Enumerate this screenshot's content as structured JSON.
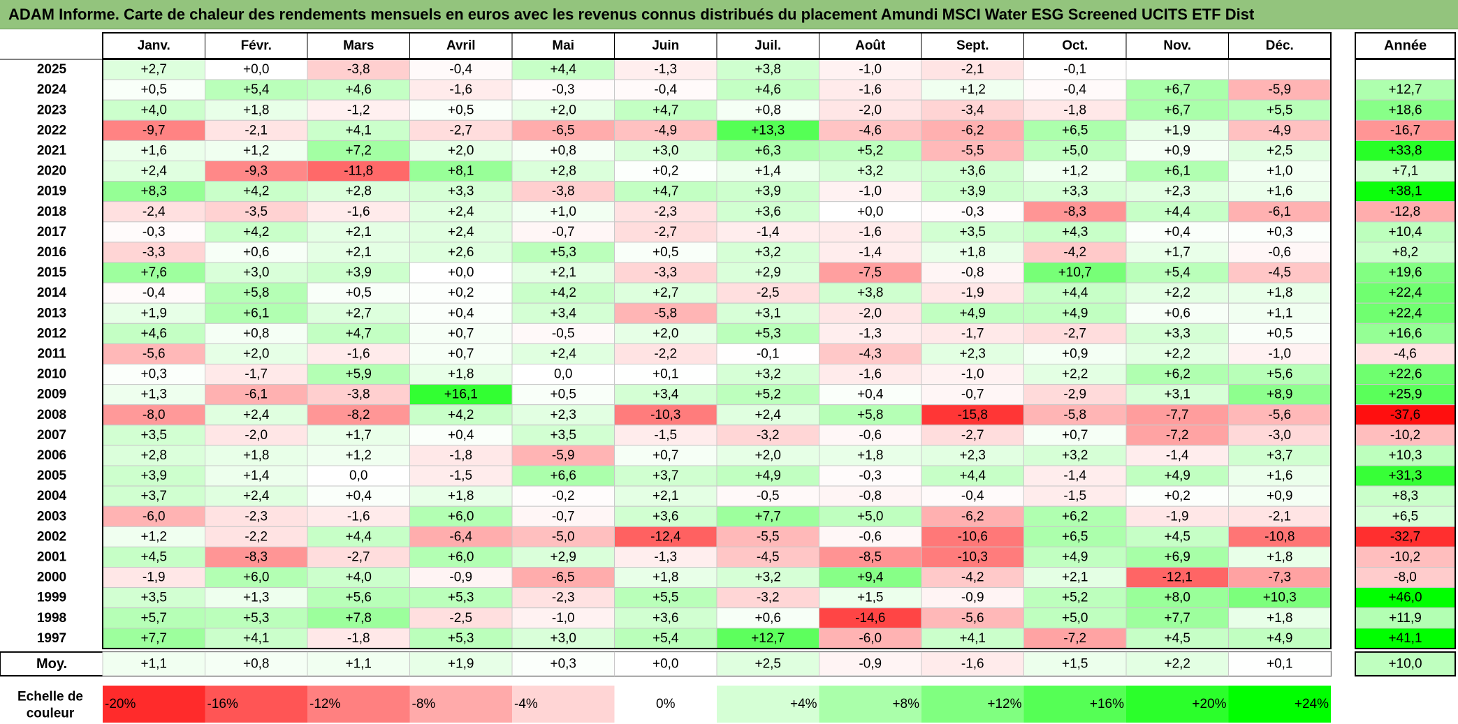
{
  "title": "ADAM Informe. Carte de chaleur des rendements mensuels en euros avec les revenus connus distribués du placement Amundi MSCI Water ESG Screened UCITS ETF Dist",
  "chart_data": {
    "type": "heatmap",
    "title": "ADAM Informe. Carte de chaleur des rendements mensuels en euros avec les revenus connus distribués du placement Amundi MSCI Water ESG Screened UCITS ETF Dist",
    "months": [
      "Janv.",
      "Févr.",
      "Mars",
      "Avril",
      "Mai",
      "Juin",
      "Juil.",
      "Août",
      "Sept.",
      "Oct.",
      "Nov.",
      "Déc."
    ],
    "year_header": "Année",
    "rows": [
      {
        "year": "2025",
        "months": [
          "+2,7",
          "+0,0",
          "-3,8",
          "-0,4",
          "+4,4",
          "-1,3",
          "+3,8",
          "-1,0",
          "-2,1",
          "-0,1",
          "",
          ""
        ],
        "annual": ""
      },
      {
        "year": "2024",
        "months": [
          "+0,5",
          "+5,4",
          "+4,6",
          "-1,6",
          "-0,3",
          "-0,4",
          "+4,6",
          "-1,6",
          "+1,2",
          "-0,4",
          "+6,7",
          "-5,9"
        ],
        "annual": "+12,7"
      },
      {
        "year": "2023",
        "months": [
          "+4,0",
          "+1,8",
          "-1,2",
          "+0,5",
          "+2,0",
          "+4,7",
          "+0,8",
          "-2,0",
          "-3,4",
          "-1,8",
          "+6,7",
          "+5,5"
        ],
        "annual": "+18,6"
      },
      {
        "year": "2022",
        "months": [
          "-9,7",
          "-2,1",
          "+4,1",
          "-2,7",
          "-6,5",
          "-4,9",
          "+13,3",
          "-4,6",
          "-6,2",
          "+6,5",
          "+1,9",
          "-4,9"
        ],
        "annual": "-16,7"
      },
      {
        "year": "2021",
        "months": [
          "+1,6",
          "+1,2",
          "+7,2",
          "+2,0",
          "+0,8",
          "+3,0",
          "+6,3",
          "+5,2",
          "-5,5",
          "+5,0",
          "+0,9",
          "+2,5"
        ],
        "annual": "+33,8"
      },
      {
        "year": "2020",
        "months": [
          "+2,4",
          "-9,3",
          "-11,8",
          "+8,1",
          "+2,8",
          "+0,2",
          "+1,4",
          "+3,2",
          "+3,6",
          "+1,2",
          "+6,1",
          "+1,0"
        ],
        "annual": "+7,1"
      },
      {
        "year": "2019",
        "months": [
          "+8,3",
          "+4,2",
          "+2,8",
          "+3,3",
          "-3,8",
          "+4,7",
          "+3,9",
          "-1,0",
          "+3,9",
          "+3,3",
          "+2,3",
          "+1,6"
        ],
        "annual": "+38,1"
      },
      {
        "year": "2018",
        "months": [
          "-2,4",
          "-3,5",
          "-1,6",
          "+2,4",
          "+1,0",
          "-2,3",
          "+3,6",
          "+0,0",
          "-0,3",
          "-8,3",
          "+4,4",
          "-6,1"
        ],
        "annual": "-12,8"
      },
      {
        "year": "2017",
        "months": [
          "-0,3",
          "+4,2",
          "+2,1",
          "+2,4",
          "-0,7",
          "-2,7",
          "-1,4",
          "-1,6",
          "+3,5",
          "+4,3",
          "+0,4",
          "+0,3"
        ],
        "annual": "+10,4"
      },
      {
        "year": "2016",
        "months": [
          "-3,3",
          "+0,6",
          "+2,1",
          "+2,6",
          "+5,3",
          "+0,5",
          "+3,2",
          "-1,4",
          "+1,8",
          "-4,2",
          "+1,7",
          "-0,6"
        ],
        "annual": "+8,2"
      },
      {
        "year": "2015",
        "months": [
          "+7,6",
          "+3,0",
          "+3,9",
          "+0,0",
          "+2,1",
          "-3,3",
          "+2,9",
          "-7,5",
          "-0,8",
          "+10,7",
          "+5,4",
          "-4,5"
        ],
        "annual": "+19,6"
      },
      {
        "year": "2014",
        "months": [
          "-0,4",
          "+5,8",
          "+0,5",
          "+0,2",
          "+4,2",
          "+2,7",
          "-2,5",
          "+3,8",
          "-1,9",
          "+4,4",
          "+2,2",
          "+1,8"
        ],
        "annual": "+22,4"
      },
      {
        "year": "2013",
        "months": [
          "+1,9",
          "+6,1",
          "+2,7",
          "+0,4",
          "+3,4",
          "-5,8",
          "+3,1",
          "-2,0",
          "+4,9",
          "+4,9",
          "+0,6",
          "+1,1"
        ],
        "annual": "+22,4"
      },
      {
        "year": "2012",
        "months": [
          "+4,6",
          "+0,8",
          "+4,7",
          "+0,7",
          "-0,5",
          "+2,0",
          "+5,3",
          "-1,3",
          "-1,7",
          "-2,7",
          "+3,3",
          "+0,5"
        ],
        "annual": "+16,6"
      },
      {
        "year": "2011",
        "months": [
          "-5,6",
          "+2,0",
          "-1,6",
          "+0,7",
          "+2,4",
          "-2,2",
          "-0,1",
          "-4,3",
          "+2,3",
          "+0,9",
          "+2,2",
          "-1,0"
        ],
        "annual": "-4,6"
      },
      {
        "year": "2010",
        "months": [
          "+0,3",
          "-1,7",
          "+5,9",
          "+1,8",
          "0,0",
          "+0,1",
          "+3,2",
          "-1,6",
          "-1,0",
          "+2,2",
          "+6,2",
          "+5,6"
        ],
        "annual": "+22,6"
      },
      {
        "year": "2009",
        "months": [
          "+1,3",
          "-6,1",
          "-3,8",
          "+16,1",
          "+0,5",
          "+3,4",
          "+5,2",
          "+0,4",
          "-0,7",
          "-2,9",
          "+3,1",
          "+8,9"
        ],
        "annual": "+25,9"
      },
      {
        "year": "2008",
        "months": [
          "-8,0",
          "+2,4",
          "-8,2",
          "+4,2",
          "+2,3",
          "-10,3",
          "+2,4",
          "+5,8",
          "-15,8",
          "-5,8",
          "-7,7",
          "-5,6"
        ],
        "annual": "-37,6"
      },
      {
        "year": "2007",
        "months": [
          "+3,5",
          "-2,0",
          "+1,7",
          "+0,4",
          "+3,5",
          "-1,5",
          "-3,2",
          "-0,6",
          "-2,7",
          "+0,7",
          "-7,2",
          "-3,0"
        ],
        "annual": "-10,2"
      },
      {
        "year": "2006",
        "months": [
          "+2,8",
          "+1,8",
          "+1,2",
          "-1,8",
          "-5,9",
          "+0,7",
          "+2,0",
          "+1,8",
          "+2,3",
          "+3,2",
          "-1,4",
          "+3,7"
        ],
        "annual": "+10,3"
      },
      {
        "year": "2005",
        "months": [
          "+3,9",
          "+1,4",
          "0,0",
          "-1,5",
          "+6,6",
          "+3,7",
          "+4,9",
          "-0,3",
          "+4,4",
          "-1,4",
          "+4,9",
          "+1,6"
        ],
        "annual": "+31,3"
      },
      {
        "year": "2004",
        "months": [
          "+3,7",
          "+2,4",
          "+0,4",
          "+1,8",
          "-0,2",
          "+2,1",
          "-0,5",
          "-0,8",
          "-0,4",
          "-1,5",
          "+0,2",
          "+0,9"
        ],
        "annual": "+8,3"
      },
      {
        "year": "2003",
        "months": [
          "-6,0",
          "-2,3",
          "-1,6",
          "+6,0",
          "-0,7",
          "+3,6",
          "+7,7",
          "+5,0",
          "-6,2",
          "+6,2",
          "-1,9",
          "-2,1"
        ],
        "annual": "+6,5"
      },
      {
        "year": "2002",
        "months": [
          "+1,2",
          "-2,2",
          "+4,4",
          "-6,4",
          "-5,0",
          "-12,4",
          "-5,5",
          "-0,6",
          "-10,6",
          "+6,5",
          "+4,5",
          "-10,8"
        ],
        "annual": "-32,7"
      },
      {
        "year": "2001",
        "months": [
          "+4,5",
          "-8,3",
          "-2,7",
          "+6,0",
          "+2,9",
          "-1,3",
          "-4,5",
          "-8,5",
          "-10,3",
          "+4,9",
          "+6,9",
          "+1,8"
        ],
        "annual": "-10,2"
      },
      {
        "year": "2000",
        "months": [
          "-1,9",
          "+6,0",
          "+4,0",
          "-0,9",
          "-6,5",
          "+1,8",
          "+3,2",
          "+9,4",
          "-4,2",
          "+2,1",
          "-12,1",
          "-7,3"
        ],
        "annual": "-8,0"
      },
      {
        "year": "1999",
        "months": [
          "+3,5",
          "+1,3",
          "+5,6",
          "+5,3",
          "-2,3",
          "+5,5",
          "-3,2",
          "+1,5",
          "-0,9",
          "+5,2",
          "+8,0",
          "+10,3"
        ],
        "annual": "+46,0"
      },
      {
        "year": "1998",
        "months": [
          "+5,7",
          "+5,3",
          "+7,8",
          "-2,5",
          "-1,0",
          "+3,6",
          "+0,6",
          "-14,6",
          "-5,6",
          "+5,0",
          "+7,7",
          "+1,8"
        ],
        "annual": "+11,9"
      },
      {
        "year": "1997",
        "months": [
          "+7,7",
          "+4,1",
          "-1,8",
          "+5,3",
          "+3,0",
          "+5,4",
          "+12,7",
          "-6,0",
          "+4,1",
          "-7,2",
          "+4,5",
          "+4,9"
        ],
        "annual": "+41,1"
      }
    ],
    "average": {
      "label": "Moy.",
      "months": [
        "+1,1",
        "+0,8",
        "+1,1",
        "+1,9",
        "+0,3",
        "+0,0",
        "+2,5",
        "-0,9",
        "-1,6",
        "+1,5",
        "+2,2",
        "+0,1"
      ],
      "annual": "+10,0"
    },
    "scale_label": [
      "Echelle de",
      "couleur"
    ],
    "scale": [
      {
        "label": "-20%",
        "value": -20
      },
      {
        "label": "-16%",
        "value": -16
      },
      {
        "label": "-12%",
        "value": -12
      },
      {
        "label": "-8%",
        "value": -8
      },
      {
        "label": "-4%",
        "value": -4
      },
      {
        "label": "0%",
        "value": 0
      },
      {
        "label": "+4%",
        "value": 4
      },
      {
        "label": "+8%",
        "value": 8
      },
      {
        "label": "+12%",
        "value": 12
      },
      {
        "label": "+16%",
        "value": 16
      },
      {
        "label": "+20%",
        "value": 20
      },
      {
        "label": "+24%",
        "value": 24
      }
    ],
    "colors": {
      "negative_max": "#ff0000",
      "positive_max": "#00ff00",
      "neutral": "#ffffff",
      "title_bar": "#93c47d"
    }
  }
}
